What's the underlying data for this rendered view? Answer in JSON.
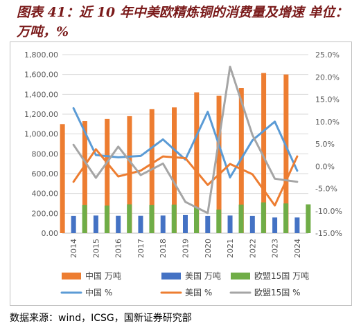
{
  "title": "图表 41：近 10 年中美欧精炼铜的消费量及增速  单位：万吨，%",
  "source": "数据来源：wind，ICSG，国新证券研究部",
  "chart_data": {
    "type": "bar",
    "categories": [
      "2014",
      "2015",
      "2016",
      "2017",
      "2018",
      "2019",
      "2020",
      "2021",
      "2022",
      "2023",
      "2024"
    ],
    "left_axis": {
      "ylim": [
        0,
        1800
      ],
      "ticks": [
        "0.00",
        "200.00",
        "400.00",
        "600.00",
        "800.00",
        "1,000.00",
        "1,200.00",
        "1,400.00",
        "1,600.00",
        "1,800.00"
      ]
    },
    "right_axis": {
      "ylim": [
        -15,
        25
      ],
      "ticks": [
        "-15.0%",
        "-10.0%",
        "-5.0%",
        "0.0%",
        "5.0%",
        "10.0%",
        "15.0%",
        "20.0%",
        "25.0%"
      ]
    },
    "grid": true,
    "legend_position": "bottom",
    "series": [
      {
        "name": "中国 万吨",
        "kind": "bar",
        "axis": "left",
        "color": "#ed7d31",
        "values": [
          1100,
          1130,
          1152,
          1180,
          1250,
          1268,
          1420,
          1385,
          1465,
          1615,
          1600
        ]
      },
      {
        "name": "美国 万吨",
        "kind": "bar",
        "axis": "left",
        "color": "#4472c4",
        "values": [
          175,
          178,
          176,
          176,
          178,
          182,
          175,
          178,
          175,
          158,
          158
        ]
      },
      {
        "name": "欧盟15国 万吨",
        "kind": "bar",
        "axis": "left",
        "color": "#70ad47",
        "values": [
          285,
          278,
          290,
          285,
          288,
          262,
          238,
          288,
          310,
          300,
          290
        ]
      },
      {
        "name": "中国 %",
        "kind": "line",
        "axis": "right",
        "color": "#5b9bd5",
        "values": [
          13.0,
          2.5,
          2.0,
          2.3,
          6.0,
          1.5,
          12.2,
          -2.5,
          5.8,
          10.0,
          -1.0
        ]
      },
      {
        "name": "美国 %",
        "kind": "line",
        "axis": "right",
        "color": "#ed7d31",
        "values": [
          -3.5,
          3.8,
          -2.3,
          -1.0,
          2.2,
          1.8,
          -4.2,
          0.5,
          -1.8,
          -8.8,
          2.2
        ]
      },
      {
        "name": "欧盟15国 %",
        "kind": "line",
        "axis": "right",
        "color": "#a5a5a5",
        "values": [
          4.8,
          -2.6,
          4.4,
          -2.0,
          0.6,
          -8.0,
          -10.5,
          22.3,
          7.0,
          -2.8,
          -3.5
        ]
      }
    ]
  }
}
